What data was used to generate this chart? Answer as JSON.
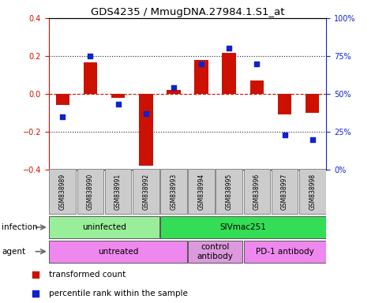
{
  "title": "GDS4235 / MmugDNA.27984.1.S1_at",
  "samples": [
    "GSM838989",
    "GSM838990",
    "GSM838991",
    "GSM838992",
    "GSM838993",
    "GSM838994",
    "GSM838995",
    "GSM838996",
    "GSM838997",
    "GSM838998"
  ],
  "red_values": [
    -0.06,
    0.165,
    -0.02,
    -0.38,
    0.02,
    0.18,
    0.215,
    0.07,
    -0.11,
    -0.1
  ],
  "blue_values_pct": [
    35,
    75,
    43,
    37,
    54,
    70,
    80,
    70,
    23,
    20
  ],
  "ylim_left": [
    -0.4,
    0.4
  ],
  "ylim_right": [
    0,
    100
  ],
  "yticks_left": [
    -0.4,
    -0.2,
    0.0,
    0.2,
    0.4
  ],
  "yticks_right": [
    0,
    25,
    50,
    75,
    100
  ],
  "ytick_right_labels": [
    "0%",
    "25%",
    "50%",
    "75%",
    "100%"
  ],
  "infection_groups": [
    {
      "label": "uninfected",
      "start": 0,
      "end": 3,
      "color": "#99EE99"
    },
    {
      "label": "SIVmac251",
      "start": 4,
      "end": 9,
      "color": "#33DD55"
    }
  ],
  "agent_groups": [
    {
      "label": "untreated",
      "start": 0,
      "end": 4,
      "color": "#EE88EE"
    },
    {
      "label": "control\nantibody",
      "start": 5,
      "end": 6,
      "color": "#DD99DD"
    },
    {
      "label": "PD-1 antibody",
      "start": 7,
      "end": 9,
      "color": "#EE88EE"
    }
  ],
  "red_color": "#CC1100",
  "blue_color": "#1122CC",
  "bar_width": 0.5,
  "dotted_line_color": "#222222",
  "zero_line_color": "#CC1100",
  "legend_red": "transformed count",
  "legend_blue": "percentile rank within the sample",
  "infection_label": "infection",
  "agent_label": "agent",
  "sample_bg": "#CCCCCC"
}
